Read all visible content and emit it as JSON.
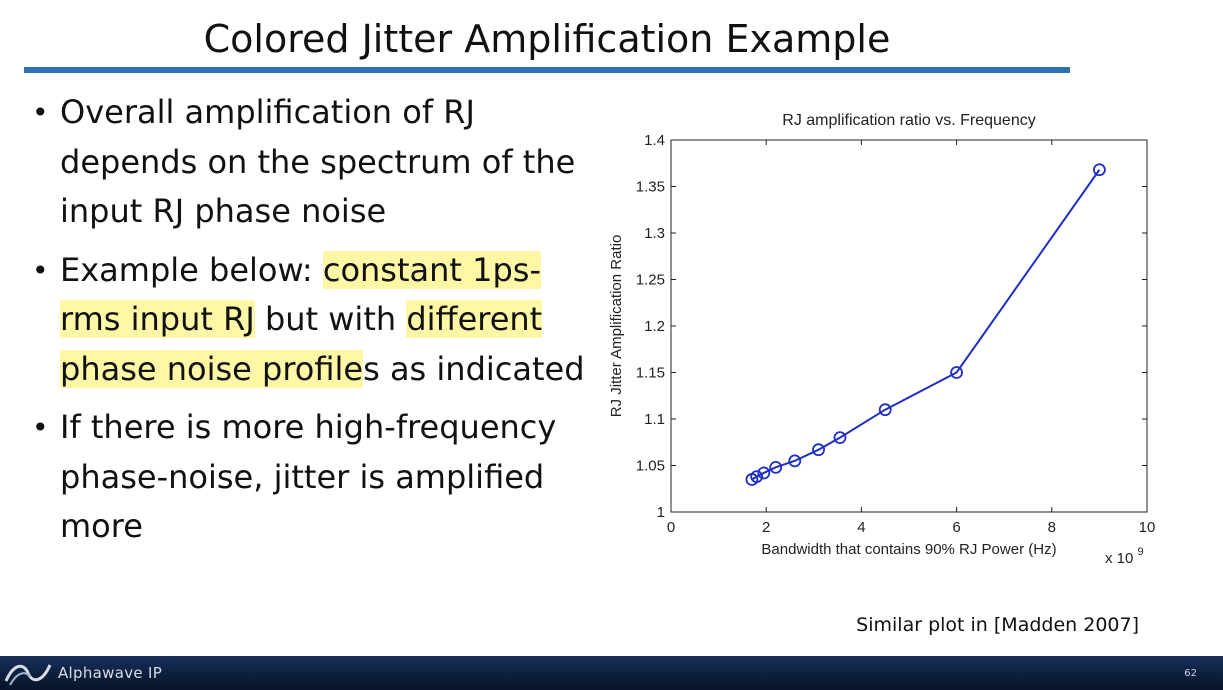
{
  "slide": {
    "title": "Colored Jitter Amplification Example",
    "caption": "Similar plot in [Madden 2007]",
    "page_number": "62"
  },
  "bullets": [
    {
      "parts": [
        {
          "text": "Overall amplification of RJ depends on the spectrum of the input RJ phase noise",
          "highlight": false
        }
      ]
    },
    {
      "parts": [
        {
          "text": "Example below: ",
          "highlight": false
        },
        {
          "text": "constant 1ps-rms input RJ",
          "highlight": true
        },
        {
          "text": " but with ",
          "highlight": false
        },
        {
          "text": "different phase noise profile",
          "highlight": true
        },
        {
          "text": "s as indicated",
          "highlight": false
        }
      ]
    },
    {
      "parts": [
        {
          "text": "If there is more high-frequency phase-noise, jitter is amplified more",
          "highlight": false
        }
      ]
    }
  ],
  "footer": {
    "brand": "Alphawave IP",
    "brand_color": "#18325a",
    "logo_icon": "alphawave-logo-icon"
  },
  "colors": {
    "title_rule": "#2f70b7",
    "highlight": "#fdf7a6",
    "series": "#1f2fc4"
  },
  "chart_data": {
    "type": "line",
    "title": "RJ amplification ratio vs. Frequency",
    "xlabel": "Bandwidth that contains 90% RJ Power (Hz)",
    "ylabel": "RJ Jitter Amplification Ratio",
    "x_multiplier_label": "x 10",
    "x_multiplier_exponent": "9",
    "xlim": [
      0,
      10
    ],
    "ylim": [
      1,
      1.4
    ],
    "xticks": [
      0,
      2,
      4,
      6,
      8,
      10
    ],
    "xtick_labels": [
      "0",
      "2",
      "4",
      "6",
      "8",
      "10"
    ],
    "yticks": [
      1,
      1.05,
      1.1,
      1.15,
      1.2,
      1.25,
      1.3,
      1.35,
      1.4
    ],
    "ytick_labels": [
      "1",
      "1.05",
      "1.1",
      "1.15",
      "1.2",
      "1.25",
      "1.3",
      "1.35",
      "1.4"
    ],
    "grid": false,
    "marker": "circle",
    "series": [
      {
        "x": [
          1.7,
          1.8,
          1.95,
          2.2,
          2.6,
          3.1,
          3.55,
          4.5,
          6.0,
          9.0
        ],
        "y": [
          1.035,
          1.038,
          1.042,
          1.048,
          1.055,
          1.067,
          1.08,
          1.11,
          1.15,
          1.368
        ]
      }
    ]
  }
}
